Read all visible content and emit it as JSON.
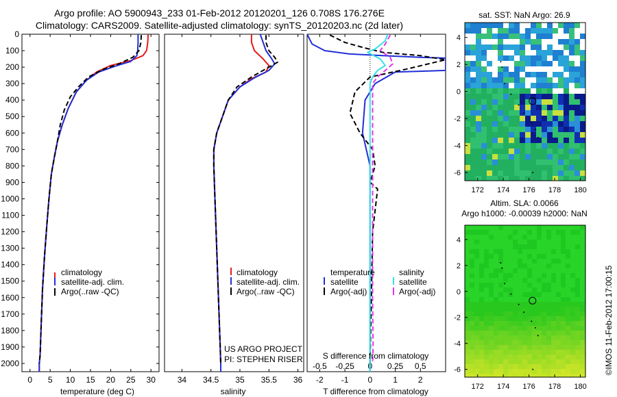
{
  "title": {
    "line1": "Argo profile: AO 5900943_233 01-Feb-2012 20120201_126 0.708S 176.276E",
    "line2": "Climatology: CARS2009. Satellite-adjusted climatology: synTS_20120203.nc (2d later)"
  },
  "colors": {
    "climatology": "#e41a1c",
    "satellite": "#1f2fd6",
    "argo": "#000000",
    "sat_salinity": "#33e0e8",
    "argo_salinity": "#e633e6"
  },
  "chart_data": [
    {
      "type": "line",
      "id": "temperature_profile",
      "xlabel": "temperature (deg C)",
      "ylabel": "",
      "xlim": [
        -2,
        32
      ],
      "ylim": [
        2050,
        0
      ],
      "x_ticks": [
        0,
        5,
        10,
        15,
        20,
        25,
        30
      ],
      "y_ticks": [
        0,
        100,
        200,
        300,
        400,
        500,
        600,
        700,
        800,
        900,
        1000,
        1100,
        1200,
        1300,
        1400,
        1500,
        1600,
        1700,
        1800,
        1900,
        2000
      ],
      "legend": [
        "climatology",
        "satellite-adj. clim.",
        "Argo(..raw -QC)"
      ],
      "series": [
        {
          "name": "climatology",
          "color_key": "climatology",
          "dash": false,
          "x": [
            29.3,
            29.2,
            28.9,
            28.0,
            25.0,
            20.0,
            16.5,
            14.0,
            11.5,
            9.5,
            8.0,
            6.8,
            6.0,
            5.3,
            4.7,
            4.2,
            3.6,
            3.1,
            2.8,
            2.5,
            2.3,
            2.3
          ],
          "y": [
            0,
            50,
            100,
            130,
            160,
            190,
            230,
            280,
            350,
            450,
            550,
            650,
            750,
            850,
            1000,
            1150,
            1350,
            1550,
            1750,
            1950,
            2000,
            2050
          ]
        },
        {
          "name": "satellite-adj. clim.",
          "color_key": "satellite",
          "dash": false,
          "x": [
            26.8,
            26.8,
            26.7,
            26.5,
            25.0,
            21.0,
            17.0,
            14.0,
            11.5,
            9.5,
            8.0,
            6.8,
            6.0,
            5.3,
            4.7,
            4.2,
            3.6,
            3.1,
            2.8,
            2.5,
            2.3,
            2.3
          ],
          "y": [
            0,
            50,
            100,
            130,
            165,
            195,
            230,
            280,
            350,
            450,
            550,
            650,
            750,
            850,
            1000,
            1150,
            1350,
            1550,
            1750,
            1950,
            2000,
            2050
          ]
        },
        {
          "name": "Argo(..raw -QC)",
          "color_key": "argo",
          "dash": true,
          "x": [
            27.6,
            27.5,
            27.0,
            25.5,
            22.0,
            18.0,
            14.5,
            12.0,
            10.0,
            8.5,
            7.5,
            6.8,
            6.0,
            5.3,
            4.7,
            4.2,
            3.6,
            3.1,
            2.8,
            2.5,
            2.3
          ],
          "y": [
            5,
            50,
            100,
            140,
            180,
            215,
            260,
            320,
            380,
            460,
            550,
            650,
            750,
            850,
            1000,
            1150,
            1350,
            1550,
            1750,
            1950,
            2000
          ]
        }
      ]
    },
    {
      "type": "line",
      "id": "salinity_profile",
      "xlabel": "salinity",
      "xlim": [
        33.7,
        36.1
      ],
      "ylim": [
        2050,
        0
      ],
      "x_ticks": [
        34,
        34.5,
        35,
        35.5,
        36
      ],
      "x_tick_labels": [
        "34",
        "34.5",
        "35",
        "35.5",
        "36"
      ],
      "legend": [
        "climatology",
        "satellite-adj. clim.",
        "Argo(..raw -QC)"
      ],
      "annotation": [
        "US ARGO PROJECT",
        "PI: STEPHEN RISER"
      ],
      "series": [
        {
          "name": "climatology",
          "color_key": "climatology",
          "dash": false,
          "x": [
            35.2,
            35.2,
            35.25,
            35.4,
            35.5,
            35.45,
            35.2,
            35.0,
            34.8,
            34.7,
            34.6,
            34.55,
            34.55,
            34.56,
            34.58,
            34.6,
            34.62,
            34.64,
            34.66,
            34.67,
            34.67
          ],
          "y": [
            0,
            50,
            100,
            150,
            190,
            230,
            270,
            320,
            400,
            500,
            600,
            700,
            800,
            900,
            1100,
            1300,
            1500,
            1700,
            1900,
            2000,
            2050
          ]
        },
        {
          "name": "satellite-adj. clim.",
          "color_key": "satellite",
          "dash": false,
          "x": [
            35.35,
            35.4,
            35.45,
            35.55,
            35.6,
            35.5,
            35.25,
            35.0,
            34.8,
            34.7,
            34.6,
            34.55,
            34.55,
            34.56,
            34.58,
            34.6,
            34.62,
            34.64,
            34.66,
            34.67,
            34.67
          ],
          "y": [
            0,
            50,
            100,
            150,
            180,
            220,
            265,
            320,
            400,
            500,
            600,
            700,
            800,
            900,
            1100,
            1300,
            1500,
            1700,
            1900,
            2000,
            2050
          ]
        },
        {
          "name": "Argo(..raw -QC)",
          "color_key": "argo",
          "dash": true,
          "x": [
            35.45,
            35.45,
            35.5,
            35.6,
            35.65,
            35.45,
            35.2,
            34.95,
            34.8,
            34.7,
            34.6,
            34.55,
            34.55,
            34.56,
            34.58,
            34.6,
            34.62,
            34.64,
            34.66,
            34.67
          ],
          "y": [
            5,
            50,
            100,
            140,
            170,
            210,
            260,
            320,
            400,
            500,
            600,
            700,
            800,
            900,
            1100,
            1300,
            1500,
            1700,
            1900,
            2000
          ]
        }
      ]
    },
    {
      "type": "line",
      "id": "difference_profile",
      "xlabel": "T difference from climatology",
      "xlabel_top": "S difference from climatology",
      "xlim": [
        -2.5,
        3.0
      ],
      "ylim": [
        2050,
        0
      ],
      "x_ticks": [
        -2,
        -1,
        0,
        1,
        2
      ],
      "x_tick_labels": [
        "-2",
        "-1",
        "0",
        "1",
        "2"
      ],
      "s_ticks": [
        -0.5,
        -0.25,
        0,
        0.25,
        0.5
      ],
      "s_tick_labels": [
        "-0.5",
        "-0.25",
        "0",
        "0.25",
        "0.5"
      ],
      "s_scale": 4,
      "legend_headers": [
        "temperature",
        "salinity"
      ],
      "legend": [
        "satellite",
        "Argo(-adj)",
        "satellite",
        "Argo(-adj)"
      ],
      "series": [
        {
          "name": "T satellite",
          "color_key": "satellite",
          "dash": false,
          "x": [
            -2.5,
            -2.3,
            -1.8,
            -0.8,
            0.5,
            2.0,
            3.0,
            3.0,
            1.0,
            0.2,
            -0.2,
            -0.3,
            0,
            0,
            0,
            0,
            0
          ],
          "y": [
            0,
            60,
            100,
            120,
            130,
            140,
            145,
            220,
            230,
            300,
            400,
            600,
            800,
            1000,
            1500,
            2000,
            2050
          ]
        },
        {
          "name": "T Argo(-adj)",
          "color_key": "argo",
          "dash": true,
          "x": [
            -1.6,
            -1.0,
            -0.3,
            0.5,
            2.0,
            3.0,
            1.5,
            0,
            -0.6,
            -0.8,
            -0.4,
            0.1,
            0.2,
            0,
            0.3,
            0.1,
            0.05,
            0
          ],
          "y": [
            5,
            50,
            80,
            110,
            130,
            155,
            210,
            260,
            350,
            480,
            600,
            700,
            800,
            900,
            940,
            1200,
            1600,
            2000
          ]
        },
        {
          "name": "S satellite",
          "color_key": "sat_salinity",
          "dash": false,
          "x": [
            0.7,
            0.6,
            0.2,
            -0.1,
            0.4,
            0.6,
            0.3,
            0.1,
            0,
            0,
            0,
            0,
            0,
            0
          ],
          "y": [
            0,
            40,
            90,
            110,
            150,
            190,
            220,
            260,
            300,
            500,
            800,
            1200,
            1700,
            2050
          ]
        },
        {
          "name": "S Argo(-adj)",
          "color_key": "argo_salinity",
          "dash": true,
          "x": [
            0.8,
            0.6,
            0.4,
            0.8,
            0.9,
            0.6,
            0.3,
            0.1,
            0.1,
            0.1,
            0.1,
            0.1,
            0.12,
            0.1
          ],
          "y": [
            5,
            60,
            100,
            140,
            180,
            220,
            260,
            300,
            500,
            800,
            1200,
            1600,
            1900,
            2000
          ]
        }
      ]
    },
    {
      "type": "heatmap",
      "id": "sst_map",
      "title": "sat. SST: NaN Argo: 26.9",
      "xlim": [
        171,
        180.4
      ],
      "ylim": [
        -6.6,
        5.1
      ],
      "x_ticks": [
        172,
        174,
        176,
        178,
        180
      ],
      "y_ticks": [
        -6,
        -4,
        -2,
        0,
        2,
        4
      ],
      "argo_position": [
        176.276,
        -0.708
      ]
    },
    {
      "type": "heatmap",
      "id": "sla_map",
      "title_line1": "Altim. SLA: 0.0066",
      "title_line2": "Argo h1000: -0.00039 h2000: NaN",
      "xlim": [
        171,
        180.4
      ],
      "ylim": [
        -6.6,
        5.1
      ],
      "x_ticks": [
        172,
        174,
        176,
        178,
        180
      ],
      "y_ticks": [
        -6,
        -4,
        -2,
        0,
        2,
        4
      ],
      "argo_position": [
        176.276,
        -0.708
      ]
    }
  ],
  "side_label": "©IMOS 11-Feb-2012 17:00:15"
}
